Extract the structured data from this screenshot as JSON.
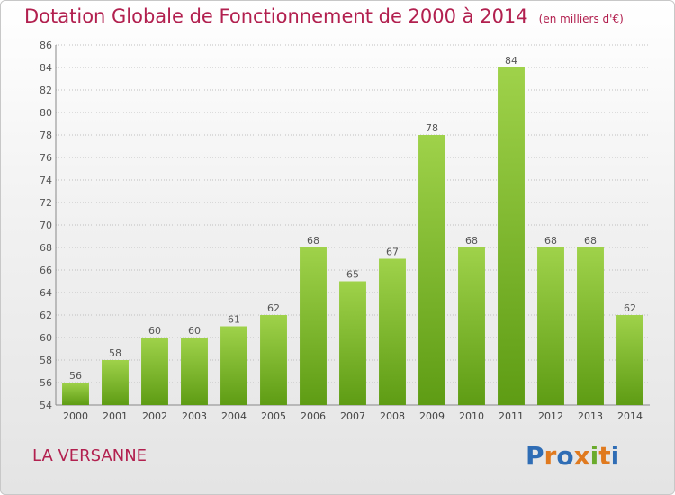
{
  "header": {
    "title": "Dotation Globale de Fonctionnement de 2000 à 2014",
    "unit": "(en milliers d'€)"
  },
  "footer": {
    "place": "LA VERSANNE",
    "brand": "Proxiti"
  },
  "colors": {
    "title": "#b2204f",
    "bar_top": "#9fd24a",
    "bar_bottom": "#5e9c14",
    "grid": "#bfbfbf",
    "brand_letters": [
      "#2f6db5",
      "#e07a1f",
      "#2f6db5",
      "#e07a1f",
      "#6aab2c",
      "#e07a1f",
      "#2f6db5"
    ]
  },
  "chart_data": {
    "type": "bar",
    "title": "Dotation Globale de Fonctionnement de 2000 à 2014",
    "subtitle": "(en milliers d'€)",
    "xlabel": "",
    "ylabel": "",
    "categories": [
      "2000",
      "2001",
      "2002",
      "2003",
      "2004",
      "2005",
      "2006",
      "2007",
      "2008",
      "2009",
      "2010",
      "2011",
      "2012",
      "2013",
      "2014"
    ],
    "values": [
      56,
      58,
      60,
      60,
      61,
      62,
      68,
      65,
      67,
      78,
      68,
      84,
      68,
      68,
      62
    ],
    "ylim": [
      54,
      86
    ],
    "yticks": [
      54,
      56,
      58,
      60,
      62,
      64,
      66,
      68,
      70,
      72,
      74,
      76,
      78,
      80,
      82,
      84,
      86
    ],
    "grid": true,
    "data_labels": true
  }
}
